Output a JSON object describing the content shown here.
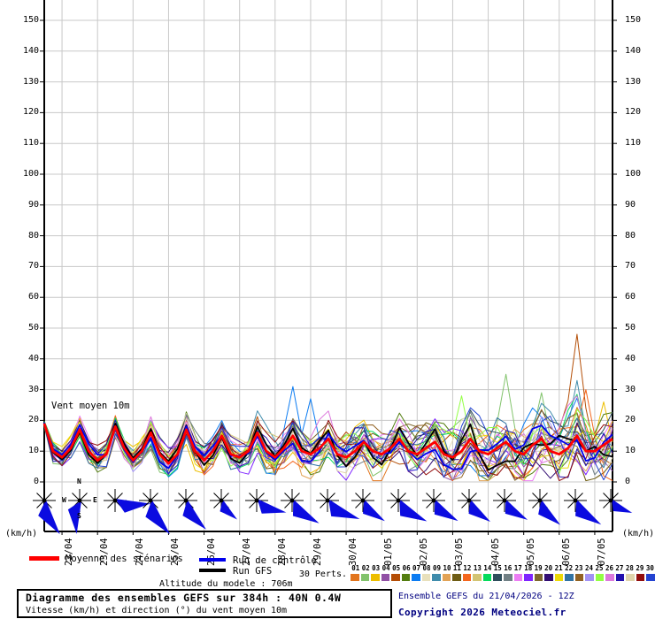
{
  "labels": {
    "unit": "(km/h)"
  },
  "chart_data": {
    "type": "line",
    "title": "Diagramme des ensembles GEFS sur 384h : 40N 0.4W",
    "subtitle": "Vitesse (km/h) et direction (°) du vent moyen 10m",
    "annotation": "Vent moyen 10m",
    "unit": "km/h",
    "grid": true,
    "x_start": "21/04/2026 12Z",
    "x_step_hours": 6,
    "x_total_hours": 384,
    "ylim": [
      0,
      155
    ],
    "y_ticks": [
      0,
      10,
      20,
      30,
      40,
      50,
      60,
      70,
      80,
      90,
      100,
      110,
      120,
      130,
      140,
      150
    ],
    "x_date_labels": [
      "22/04",
      "23/04",
      "24/04",
      "25/04",
      "26/04",
      "27/04",
      "28/04",
      "29/04",
      "30/04",
      "01/05",
      "02/05",
      "03/05",
      "04/05",
      "05/05",
      "06/05",
      "07/05"
    ],
    "compass": {
      "n": "N",
      "w": "W",
      "e": "E",
      "s": "S"
    },
    "series_styles": {
      "mean": {
        "label": "Moyenne des scénarios",
        "color": "#FF0000",
        "width": 2.8
      },
      "control": {
        "label": "Run de contrôle",
        "color": "#0000EE",
        "width": 1.8
      },
      "gfs": {
        "label": "Run GFS",
        "color": "#000000",
        "width": 1.8
      }
    },
    "mean_values": [
      19,
      10,
      8,
      11,
      17,
      10,
      7,
      9,
      18,
      11,
      7,
      10,
      16,
      9,
      6,
      9,
      17,
      10,
      7,
      10,
      15,
      9,
      8,
      10,
      16,
      10,
      8,
      11,
      15,
      10,
      9,
      11,
      14,
      9,
      8,
      10,
      13,
      10,
      9,
      11,
      14,
      10,
      9,
      11,
      13,
      9,
      8,
      10,
      14,
      10,
      9,
      11,
      13,
      10,
      9,
      12,
      14,
      10,
      9,
      11,
      15,
      10,
      10,
      12,
      14
    ],
    "ensemble": {
      "count": 30,
      "perts_label": "30 Perts.",
      "labels": [
        "01",
        "02",
        "03",
        "04",
        "05",
        "06",
        "07",
        "08",
        "09",
        "10",
        "11",
        "12",
        "13",
        "14",
        "15",
        "16",
        "17",
        "18",
        "19",
        "20",
        "21",
        "22",
        "23",
        "24",
        "25",
        "26",
        "27",
        "28",
        "29",
        "30"
      ],
      "colors": [
        "#E2751D",
        "#82C36C",
        "#EDBE00",
        "#9150A5",
        "#B44E06",
        "#537D10",
        "#0C7CF2",
        "#E8E0BC",
        "#3F8CAC",
        "#E2A356",
        "#6E5C14",
        "#F4661C",
        "#D2C473",
        "#06DB5C",
        "#2E4E5C",
        "#718085",
        "#EC7DF4",
        "#7F24FF",
        "#7E682E",
        "#330E73",
        "#EDD906",
        "#3273A3",
        "#926223",
        "#A292F4",
        "#93FF44",
        "#DC78DC",
        "#2310AD",
        "#E0D4AC",
        "#930E0E",
        "#2343D1"
      ],
      "spread_base": 2.5,
      "spread_growth": 6.5
    },
    "notable_spikes": [
      {
        "member": 5,
        "step": 60,
        "value": 48
      },
      {
        "member": 9,
        "step": 60,
        "value": 33
      },
      {
        "member": 7,
        "step": 28,
        "value": 31
      },
      {
        "member": 7,
        "step": 30,
        "value": 27
      },
      {
        "member": 2,
        "step": 52,
        "value": 35
      },
      {
        "member": 2,
        "step": 56,
        "value": 29
      },
      {
        "member": 25,
        "step": 47,
        "value": 28
      },
      {
        "member": 12,
        "step": 61,
        "value": 30
      },
      {
        "member": 3,
        "step": 63,
        "value": 26
      }
    ],
    "wind_direction_arrows": [
      {
        "bearing_deg": 155,
        "length": 42
      },
      {
        "bearing_deg": 185,
        "length": 38
      },
      {
        "bearing_deg": 95,
        "length": 40
      },
      {
        "bearing_deg": 150,
        "length": 44
      },
      {
        "bearing_deg": 145,
        "length": 40
      },
      {
        "bearing_deg": 140,
        "length": 28
      },
      {
        "bearing_deg": 112,
        "length": 36
      },
      {
        "bearing_deg": 130,
        "length": 40
      },
      {
        "bearing_deg": 120,
        "length": 42
      },
      {
        "bearing_deg": 133,
        "length": 34
      },
      {
        "bearing_deg": 126,
        "length": 40
      },
      {
        "bearing_deg": 130,
        "length": 36
      },
      {
        "bearing_deg": 135,
        "length": 34
      },
      {
        "bearing_deg": 130,
        "length": 34
      },
      {
        "bearing_deg": 140,
        "length": 36
      },
      {
        "bearing_deg": 133,
        "length": 40
      },
      {
        "bearing_deg": 120,
        "length": 28
      }
    ],
    "arrow_color": "#0B0BE0",
    "grid_color": "#C8C8C8"
  },
  "legend": {
    "mean_label": "Moyenne des scénarios",
    "control_label": "Run de contrôle",
    "gfs_label": "Run GFS",
    "perts_label": "30 Perts."
  },
  "footer": {
    "altitude": "Altitude du modele : 706m",
    "box_title": "Diagramme des ensembles GEFS sur 384h : 40N 0.4W",
    "box_subtitle": "Vitesse (km/h) et direction (°) du vent moyen 10m",
    "run_info": "Ensemble GEFS du 21/04/2026 - 12Z",
    "copyright": "Copyright 2026 Meteociel.fr"
  }
}
